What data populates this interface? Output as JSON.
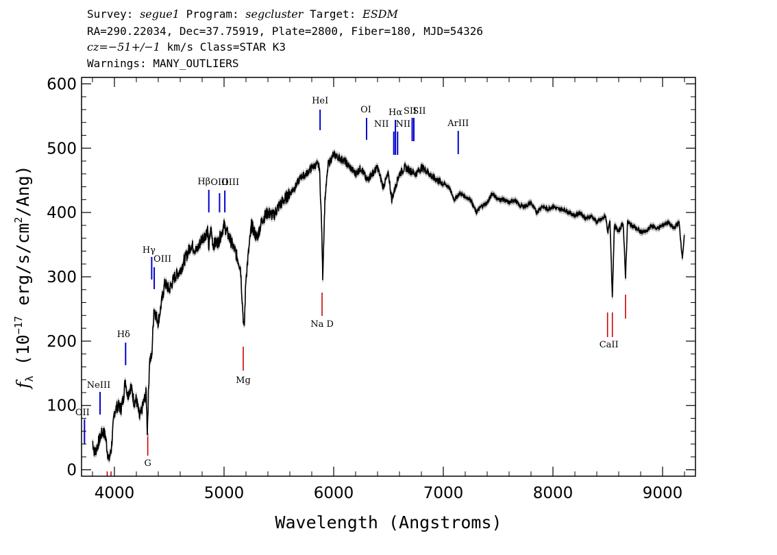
{
  "header": {
    "survey_label": "Survey: ",
    "survey": "segue1",
    "program_label": " Program: ",
    "program": "segcluster",
    "target_label": " Target: ",
    "target": "ESDM",
    "line2": "RA=290.22034, Dec=37.75919, Plate=2800, Fiber=180, MJD=54326",
    "cz_label": "cz=",
    "cz_value": "−51+/−1",
    "cz_rest": " km/s Class=STAR K3",
    "line4": "Warnings: MANY_OUTLIERS"
  },
  "chart_data": {
    "type": "line",
    "xlabel": "Wavelength (Angstroms)",
    "ylabel": "f_λ (10^-17 erg/s/cm^2/Ang)",
    "xlim": [
      3700,
      9300
    ],
    "ylim": [
      -10,
      610
    ],
    "xticks": [
      4000,
      5000,
      6000,
      7000,
      8000,
      9000
    ],
    "yticks": [
      0,
      100,
      200,
      300,
      400,
      500,
      600
    ],
    "colors": {
      "spectrum": "#000000",
      "error_band": "#bdbdbd",
      "emission_lines": "#0000cc",
      "absorption_lines": "#cc0000"
    },
    "series": [
      {
        "x": [
          3800,
          3820,
          3850,
          3880,
          3900,
          3920,
          3935,
          3950,
          3970,
          4000,
          4030,
          4060,
          4080,
          4100,
          4120,
          4150,
          4180,
          4200,
          4230,
          4260,
          4290,
          4300,
          4320,
          4340,
          4360,
          4380,
          4400,
          4430,
          4460,
          4500,
          4550,
          4600,
          4650,
          4700,
          4750,
          4800,
          4850,
          4861,
          4880,
          4900,
          4950,
          5000,
          5050,
          5100,
          5150,
          5170,
          5183,
          5200,
          5250,
          5300,
          5350,
          5400,
          5450,
          5500,
          5550,
          5600,
          5650,
          5700,
          5750,
          5800,
          5850,
          5870,
          5890,
          5900,
          5920,
          5950,
          6000,
          6050,
          6100,
          6150,
          6200,
          6250,
          6300,
          6350,
          6400,
          6450,
          6500,
          6530,
          6563,
          6580,
          6600,
          6650,
          6700,
          6750,
          6800,
          6850,
          6900,
          6950,
          7000,
          7050,
          7100,
          7150,
          7200,
          7250,
          7300,
          7350,
          7400,
          7450,
          7500,
          7550,
          7600,
          7650,
          7700,
          7750,
          7800,
          7850,
          7900,
          7950,
          8000,
          8050,
          8100,
          8150,
          8200,
          8250,
          8300,
          8350,
          8400,
          8450,
          8480,
          8500,
          8520,
          8542,
          8560,
          8600,
          8640,
          8662,
          8680,
          8720,
          8760,
          8800,
          8850,
          8900,
          8950,
          9000,
          9050,
          9100,
          9150,
          9180,
          9200
        ],
        "y": [
          45,
          25,
          40,
          55,
          60,
          50,
          30,
          15,
          30,
          90,
          100,
          95,
          110,
          140,
          115,
          130,
          105,
          110,
          80,
          100,
          120,
          60,
          170,
          175,
          250,
          240,
          230,
          260,
          290,
          280,
          300,
          310,
          330,
          350,
          340,
          360,
          370,
          345,
          375,
          350,
          355,
          380,
          360,
          340,
          315,
          250,
          215,
          300,
          380,
          360,
          390,
          400,
          395,
          410,
          420,
          430,
          440,
          455,
          460,
          470,
          475,
          470,
          380,
          300,
          420,
          475,
          490,
          485,
          480,
          470,
          460,
          470,
          450,
          460,
          470,
          440,
          460,
          420,
          440,
          450,
          460,
          470,
          465,
          460,
          470,
          465,
          455,
          450,
          445,
          440,
          420,
          430,
          425,
          420,
          400,
          410,
          415,
          430,
          420,
          420,
          415,
          420,
          410,
          410,
          415,
          400,
          410,
          405,
          410,
          405,
          405,
          400,
          395,
          400,
          390,
          395,
          385,
          390,
          395,
          370,
          385,
          270,
          380,
          370,
          385,
          300,
          385,
          380,
          375,
          370,
          370,
          380,
          375,
          380,
          385,
          375,
          385,
          330,
          365
        ]
      }
    ],
    "annotations": {
      "emission": [
        {
          "label": "OII",
          "x": 3727
        },
        {
          "label": "NeIII",
          "x": 3869
        },
        {
          "label": "Hδ",
          "x": 4102
        },
        {
          "label": "Hγ",
          "x": 4340
        },
        {
          "label": "OIII",
          "x": 4363
        },
        {
          "label": "Hβ",
          "x": 4861
        },
        {
          "label": "OIII",
          "x": 4959
        },
        {
          "label": "OIII",
          "x": 5007
        },
        {
          "label": "HeI",
          "x": 5876
        },
        {
          "label": "OI",
          "x": 6300
        },
        {
          "label": "NII",
          "x": 6548
        },
        {
          "label": "Hα",
          "x": 6563
        },
        {
          "label": "NII",
          "x": 6583
        },
        {
          "label": "SII",
          "x": 6716
        },
        {
          "label": "SII",
          "x": 6731
        },
        {
          "label": "ArIII",
          "x": 7136
        }
      ],
      "absorption": [
        {
          "label": "",
          "x": 3934
        },
        {
          "label": "",
          "x": 3969
        },
        {
          "label": "G",
          "x": 4304
        },
        {
          "label": "Mg",
          "x": 5175
        },
        {
          "label": "Na D",
          "x": 5894
        },
        {
          "label": "CaII",
          "x": 8498
        },
        {
          "label": "",
          "x": 8542
        },
        {
          "label": "",
          "x": 8662
        }
      ]
    }
  }
}
